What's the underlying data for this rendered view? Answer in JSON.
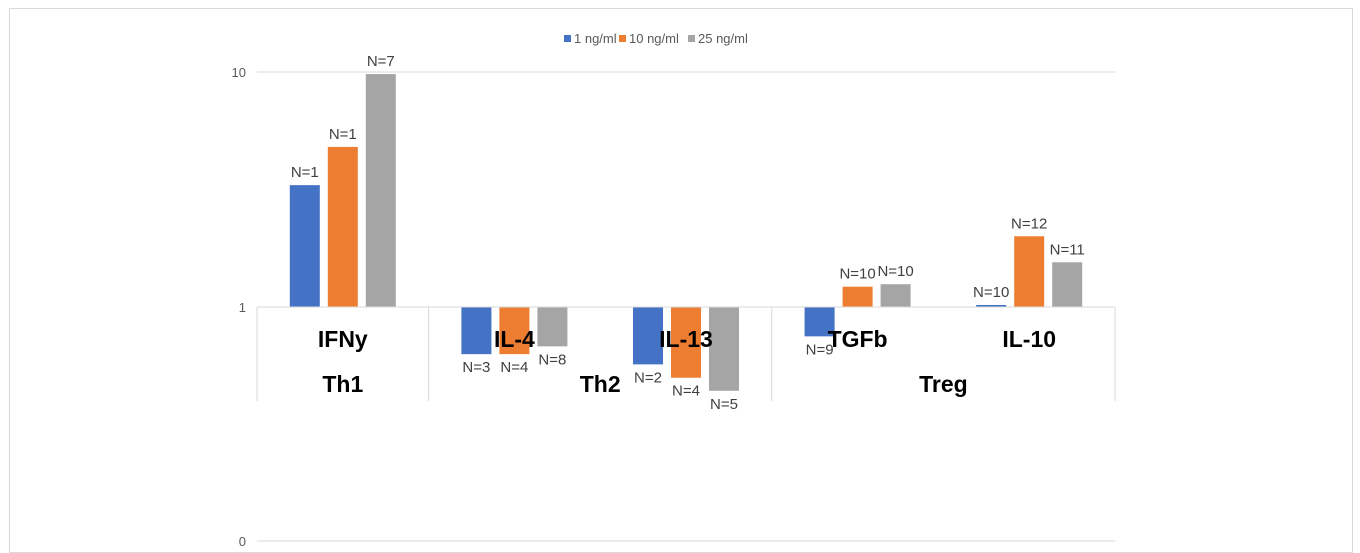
{
  "chart_data": {
    "type": "bar",
    "y_scale": "log",
    "ylim": [
      0,
      10
    ],
    "y_ticks": [
      "0",
      "1",
      "10"
    ],
    "groups": [
      "Th1",
      "Th2",
      "Treg"
    ],
    "categories": [
      "IFNy",
      "IL-4",
      "IL-13",
      "TGFb",
      "IL-10"
    ],
    "category_groups": [
      "Th1",
      "Th2",
      "Th2",
      "Treg",
      "Treg"
    ],
    "series": [
      {
        "name": "1 ng/ml",
        "color": "#4472C4",
        "values": [
          3.3,
          0.63,
          0.57,
          0.75,
          1.02
        ],
        "labels": [
          "N=1",
          "N=3",
          "N=2",
          "N=9",
          "N=10"
        ]
      },
      {
        "name": "10 ng/ml",
        "color": "#ED7D31",
        "values": [
          4.8,
          0.63,
          0.5,
          1.22,
          2.0
        ],
        "labels": [
          "N=1",
          "N=4",
          "N=4",
          "N=10",
          "N=12"
        ]
      },
      {
        "name": "25 ng/ml",
        "color": "#A5A5A5",
        "values": [
          9.8,
          0.68,
          0.44,
          1.25,
          1.55
        ],
        "labels": [
          "N=7",
          "N=8",
          "N=5",
          "N=10",
          "N=11"
        ]
      }
    ],
    "grid": true,
    "legend_position": "top-center"
  }
}
